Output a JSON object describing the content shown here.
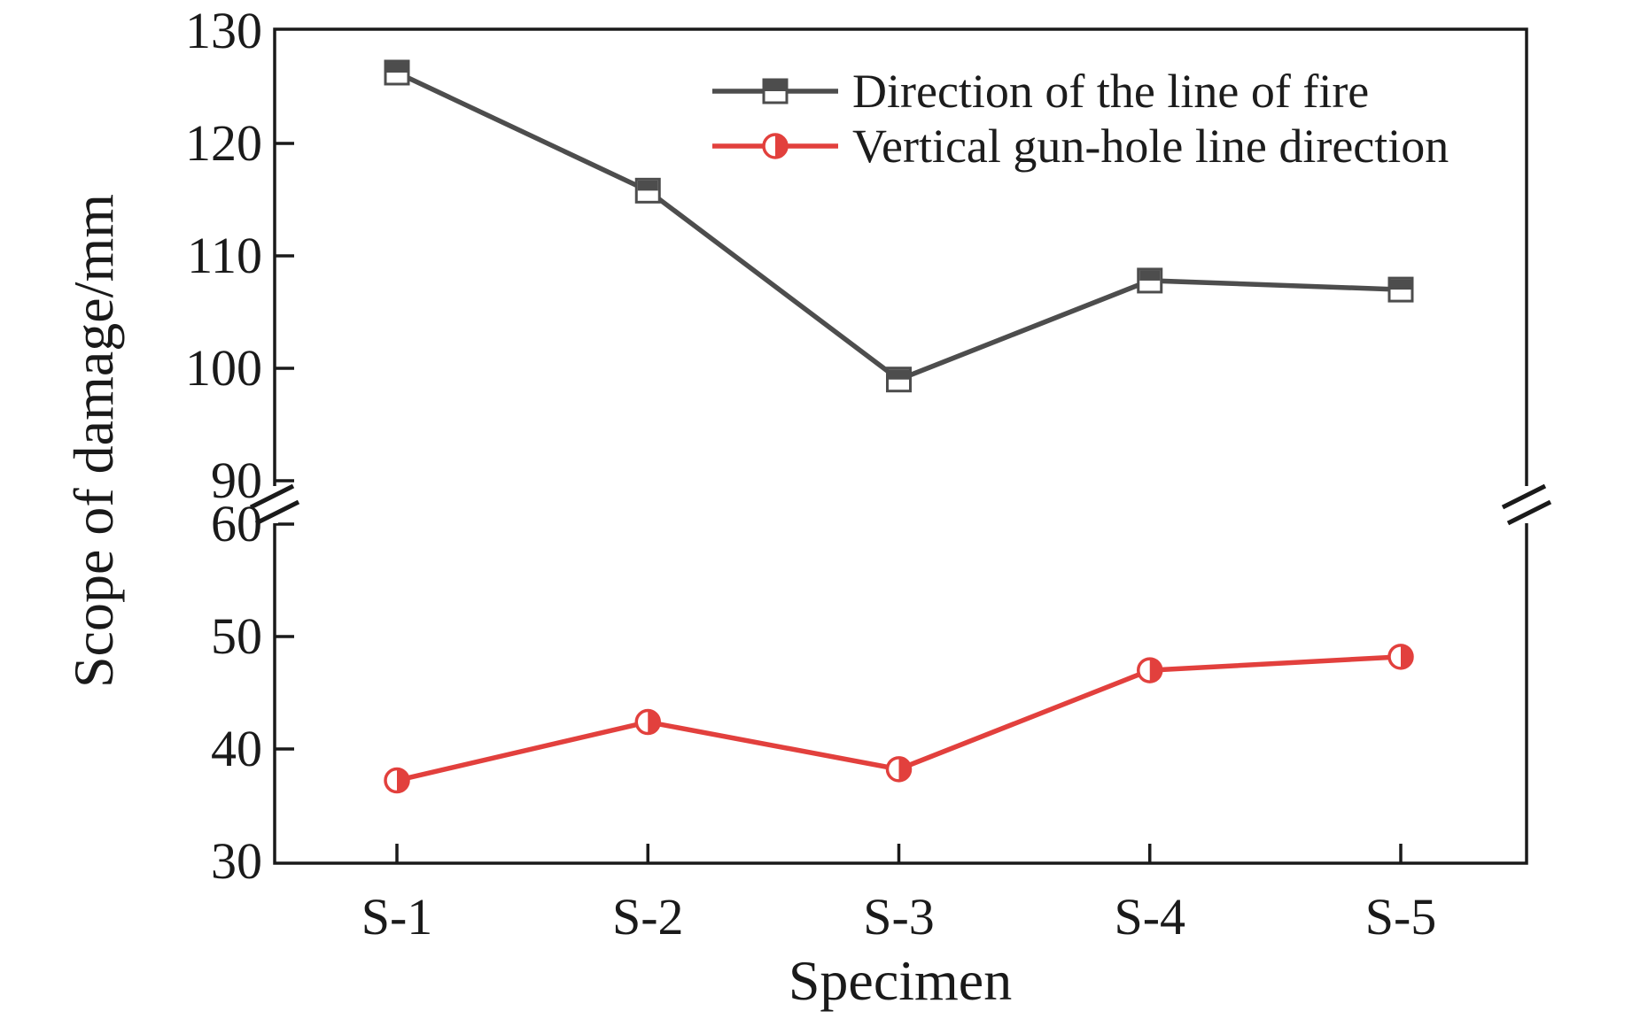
{
  "chart_data": {
    "type": "line",
    "title": "",
    "xlabel": "Specimen",
    "ylabel": "Scope of damage/mm",
    "categories": [
      "S-1",
      "S-2",
      "S-3",
      "S-4",
      "S-5"
    ],
    "series": [
      {
        "name": "Direction of the line of fire",
        "color": "#4d4d4d",
        "marker": "square-half-top-filled",
        "values": [
          126.3,
          115.8,
          99.0,
          107.8,
          107.0
        ]
      },
      {
        "name": "Vertical gun-hole line direction",
        "color": "#e2403d",
        "marker": "circle-half-right-filled",
        "values": [
          37.2,
          42.4,
          38.2,
          47.0,
          48.2
        ]
      }
    ],
    "y_axis": {
      "broken": true,
      "upper_segment": {
        "min": 90,
        "max": 130,
        "ticks": [
          130,
          120,
          110,
          100,
          90
        ]
      },
      "lower_segment": {
        "min": 30,
        "max": 60,
        "ticks": [
          60,
          50,
          40,
          30
        ]
      }
    },
    "x_axis": {
      "ticks": [
        "S-1",
        "S-2",
        "S-3",
        "S-4",
        "S-5"
      ]
    },
    "legend": {
      "position": "top-right-inside"
    },
    "grid": "off",
    "axis_color": "#1a1a1a"
  }
}
